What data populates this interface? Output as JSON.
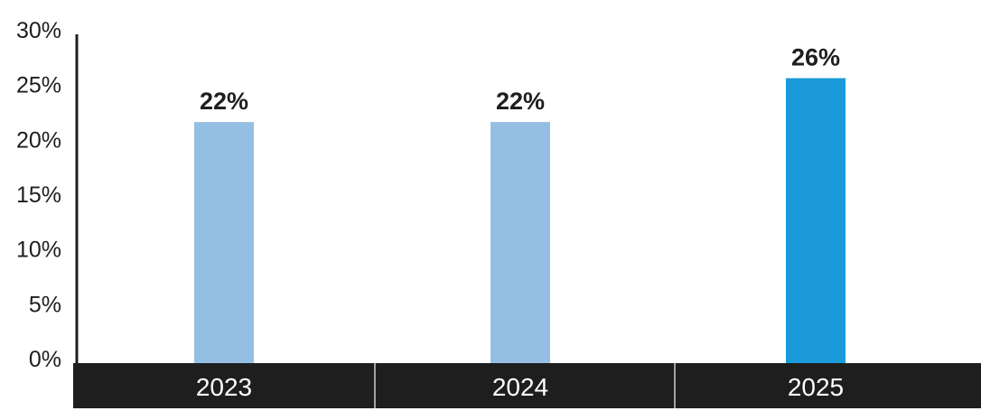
{
  "chart_data": {
    "type": "bar",
    "categories": [
      "2023",
      "2024",
      "2025"
    ],
    "values": [
      22,
      22,
      26
    ],
    "data_labels": [
      "22%",
      "22%",
      "26%"
    ],
    "ylim": [
      0,
      30
    ],
    "yticks": [
      0,
      5,
      10,
      15,
      20,
      25,
      30
    ],
    "ytick_labels": [
      "0%",
      "5%",
      "10%",
      "15%",
      "20%",
      "25%",
      "30%"
    ],
    "grid": false,
    "bar_colors": [
      "#95bfe2",
      "#95bfe2",
      "#1a9ad9"
    ],
    "category_band_color": "#1e1e1e",
    "axis_color": "#1e1e1e"
  }
}
